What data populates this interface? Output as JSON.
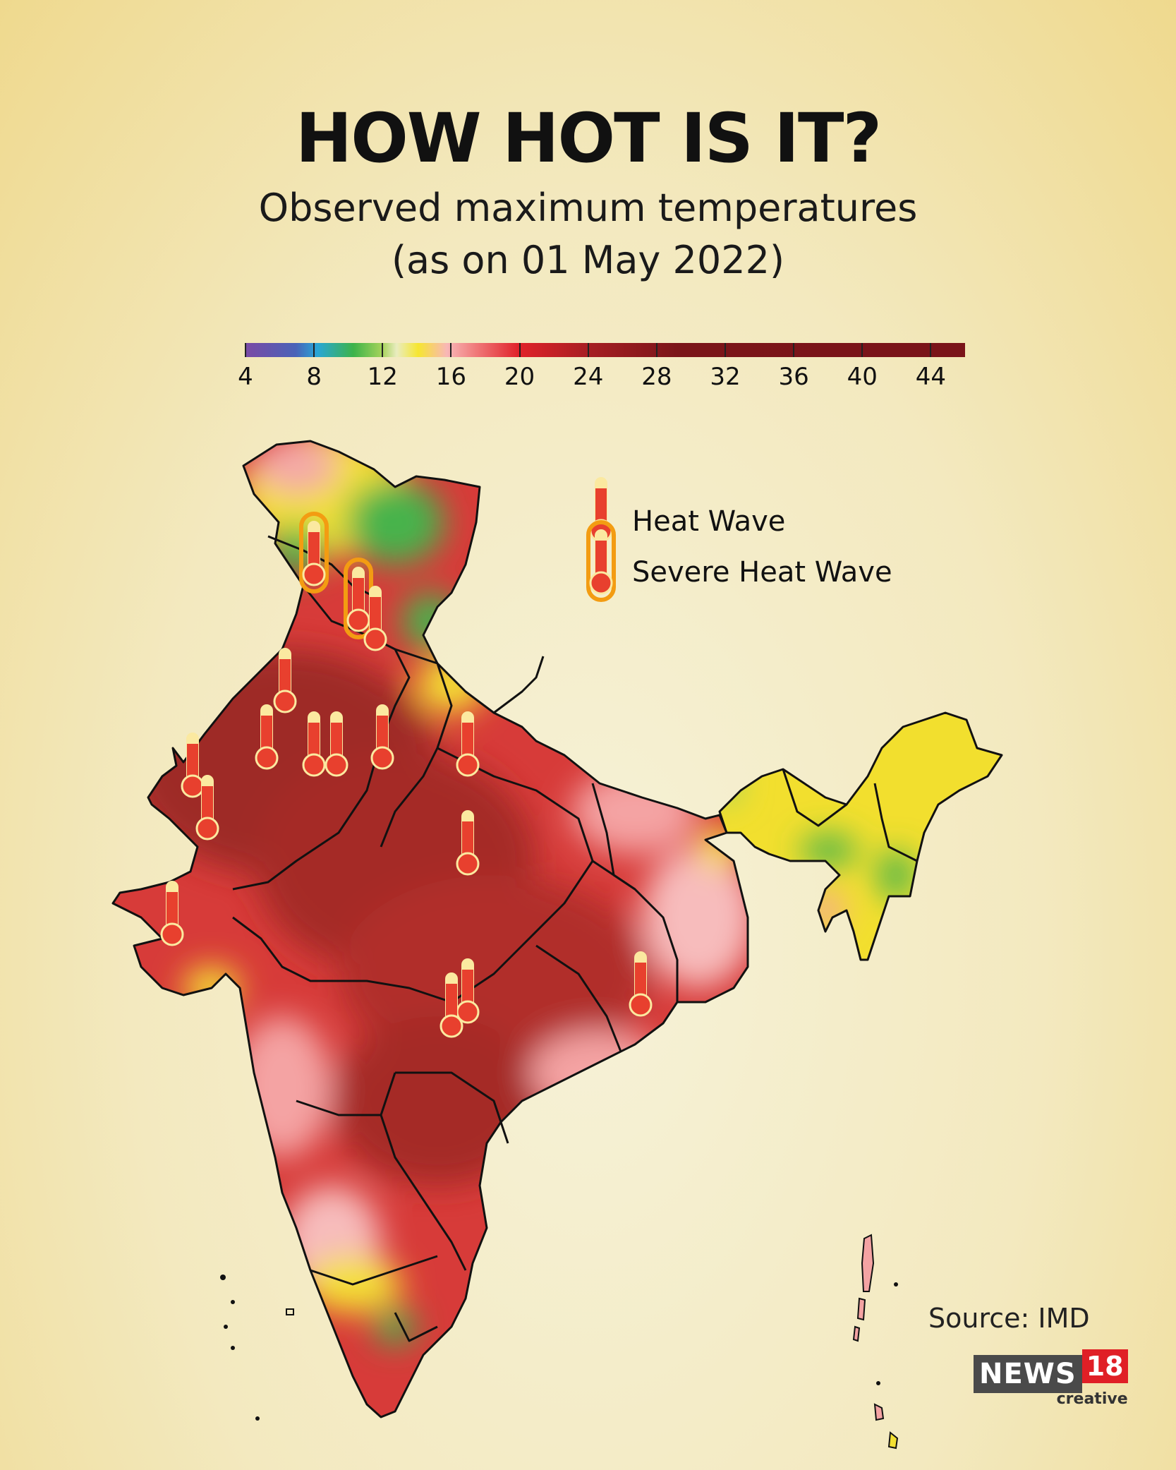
{
  "title": "HOW HOT IS IT?",
  "subtitle_line1": "Observed maximum temperatures",
  "subtitle_line2": "(as on 01 May 2022)",
  "colorbar": {
    "min": 4,
    "max": 46,
    "tick_labels": [
      "4",
      "8",
      "12",
      "16",
      "20",
      "24",
      "28",
      "32",
      "36",
      "40",
      "44"
    ],
    "tick_values": [
      4,
      8,
      12,
      16,
      20,
      24,
      28,
      32,
      36,
      40,
      44
    ]
  },
  "legend": {
    "heat_wave": "Heat Wave",
    "severe_heat_wave": "Severe Heat Wave"
  },
  "source": "Source: IMD",
  "logo": {
    "news": "NEWS",
    "number": "18",
    "tagline": "creative"
  },
  "colors": {
    "very_hot": "#a52a26",
    "hot": "#d9383a",
    "warm_pink": "#f4a3a3",
    "yellow": "#f3e032",
    "green": "#47b44d",
    "severe_ring": "#f39c12",
    "thermometer": "#e8402e"
  }
}
